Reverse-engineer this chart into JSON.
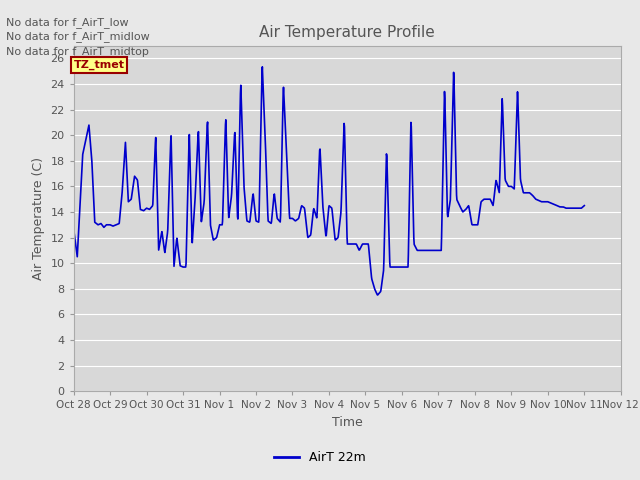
{
  "title": "Air Temperature Profile",
  "xlabel": "Time",
  "ylabel": "Air Temperature (C)",
  "legend_label": "AirT 22m",
  "line_color": "#0000cc",
  "line_width": 1.2,
  "bg_color": "#e8e8e8",
  "plot_bg_color": "#d8d8d8",
  "ylim": [
    0,
    27
  ],
  "yticks": [
    0,
    2,
    4,
    6,
    8,
    10,
    12,
    14,
    16,
    18,
    20,
    22,
    24,
    26
  ],
  "xtick_labels": [
    "Oct 28",
    "Oct 29",
    "Oct 30",
    "Oct 31",
    "Nov 1",
    "Nov 2",
    "Nov 3",
    "Nov 4",
    "Nov 5",
    "Nov 6",
    "Nov 7",
    "Nov 8",
    "Nov 9",
    "Nov 10",
    "Nov 11",
    "Nov 12"
  ],
  "no_data_texts": [
    "No data for f_AirT_low",
    "No data for f_AirT_midlow",
    "No data for f_AirT_midtop"
  ],
  "grid_color": "#ffffff",
  "title_color": "#555555",
  "axis_label_color": "#555555",
  "tick_label_color": "#555555",
  "no_data_text_color": "#555555",
  "xlim": [
    0,
    15
  ],
  "key_t": [
    0.0,
    0.1,
    0.25,
    0.42,
    0.5,
    0.58,
    0.67,
    0.75,
    0.83,
    0.9,
    1.0,
    1.08,
    1.17,
    1.25,
    1.33,
    1.42,
    1.5,
    1.58,
    1.67,
    1.75,
    1.83,
    1.92,
    2.0,
    2.08,
    2.17,
    2.25,
    2.33,
    2.42,
    2.5,
    2.58,
    2.67,
    2.75,
    2.83,
    2.92,
    3.0,
    3.08,
    3.17,
    3.25,
    3.33,
    3.42,
    3.5,
    3.58,
    3.67,
    3.75,
    3.83,
    3.92,
    4.0,
    4.08,
    4.17,
    4.25,
    4.33,
    4.42,
    4.5,
    4.58,
    4.67,
    4.75,
    4.83,
    4.92,
    5.0,
    5.08,
    5.17,
    5.25,
    5.33,
    5.42,
    5.5,
    5.58,
    5.67,
    5.75,
    5.83,
    5.92,
    6.0,
    6.08,
    6.17,
    6.25,
    6.33,
    6.42,
    6.5,
    6.58,
    6.67,
    6.75,
    6.83,
    6.92,
    7.0,
    7.08,
    7.17,
    7.25,
    7.33,
    7.42,
    7.5,
    7.58,
    7.67,
    7.75,
    7.83,
    7.92,
    8.0,
    8.08,
    8.17,
    8.25,
    8.33,
    8.42,
    8.5,
    8.58,
    8.67,
    8.75,
    8.83,
    8.92,
    9.0,
    9.08,
    9.17,
    9.25,
    9.33,
    9.42,
    9.5,
    9.58,
    9.67,
    9.75,
    9.83,
    9.92,
    10.0,
    10.08,
    10.17,
    10.25,
    10.33,
    10.42,
    10.5,
    10.58,
    10.67,
    10.75,
    10.83,
    10.92,
    11.0,
    11.08,
    11.17,
    11.25,
    11.33,
    11.42,
    11.5,
    11.58,
    11.67,
    11.75,
    11.83,
    11.92,
    12.0,
    12.08,
    12.17,
    12.25,
    12.33,
    12.42,
    12.5,
    12.58,
    12.67,
    12.75,
    12.83,
    12.92,
    13.0,
    13.08,
    13.17,
    13.25,
    13.33,
    13.42,
    13.5,
    13.58,
    13.67,
    13.75,
    13.83,
    13.92,
    14.0
  ],
  "key_v": [
    12.7,
    10.5,
    18.5,
    20.8,
    18.0,
    13.2,
    13.0,
    13.1,
    12.8,
    13.0,
    13.0,
    12.9,
    13.0,
    13.1,
    15.5,
    19.5,
    14.8,
    15.0,
    16.8,
    16.5,
    14.2,
    14.1,
    14.3,
    14.2,
    14.5,
    20.0,
    11.0,
    12.5,
    10.8,
    12.5,
    20.2,
    9.7,
    12.0,
    9.8,
    9.7,
    9.7,
    20.3,
    11.5,
    15.0,
    20.5,
    13.2,
    14.8,
    21.3,
    13.0,
    11.8,
    12.0,
    13.0,
    13.0,
    21.5,
    13.5,
    15.3,
    20.5,
    13.0,
    24.2,
    16.0,
    13.3,
    13.2,
    15.5,
    13.3,
    13.2,
    25.6,
    20.0,
    13.3,
    13.1,
    15.5,
    13.5,
    13.2,
    24.0,
    19.0,
    13.5,
    13.5,
    13.3,
    13.5,
    14.5,
    14.3,
    12.0,
    12.2,
    14.3,
    13.5,
    19.2,
    14.5,
    12.0,
    14.5,
    14.3,
    11.8,
    12.0,
    14.0,
    21.3,
    11.5,
    11.5,
    11.5,
    11.5,
    11.0,
    11.5,
    11.5,
    11.5,
    8.8,
    8.0,
    7.5,
    7.8,
    9.5,
    19.0,
    9.7,
    9.7,
    9.7,
    9.7,
    9.7,
    9.7,
    9.7,
    21.5,
    11.5,
    11.0,
    11.0,
    11.0,
    11.0,
    11.0,
    11.0,
    11.0,
    11.0,
    11.0,
    23.8,
    13.5,
    15.0,
    25.2,
    15.0,
    14.5,
    14.0,
    14.2,
    14.5,
    13.0,
    13.0,
    13.0,
    14.8,
    15.0,
    15.0,
    15.0,
    14.5,
    16.5,
    15.5,
    23.0,
    16.5,
    16.0,
    16.0,
    15.8,
    23.5,
    16.5,
    15.5,
    15.5,
    15.5,
    15.3,
    15.0,
    14.9,
    14.8,
    14.8,
    14.8,
    14.7,
    14.6,
    14.5,
    14.4,
    14.4,
    14.3,
    14.3,
    14.3,
    14.3,
    14.3,
    14.3,
    14.5
  ]
}
